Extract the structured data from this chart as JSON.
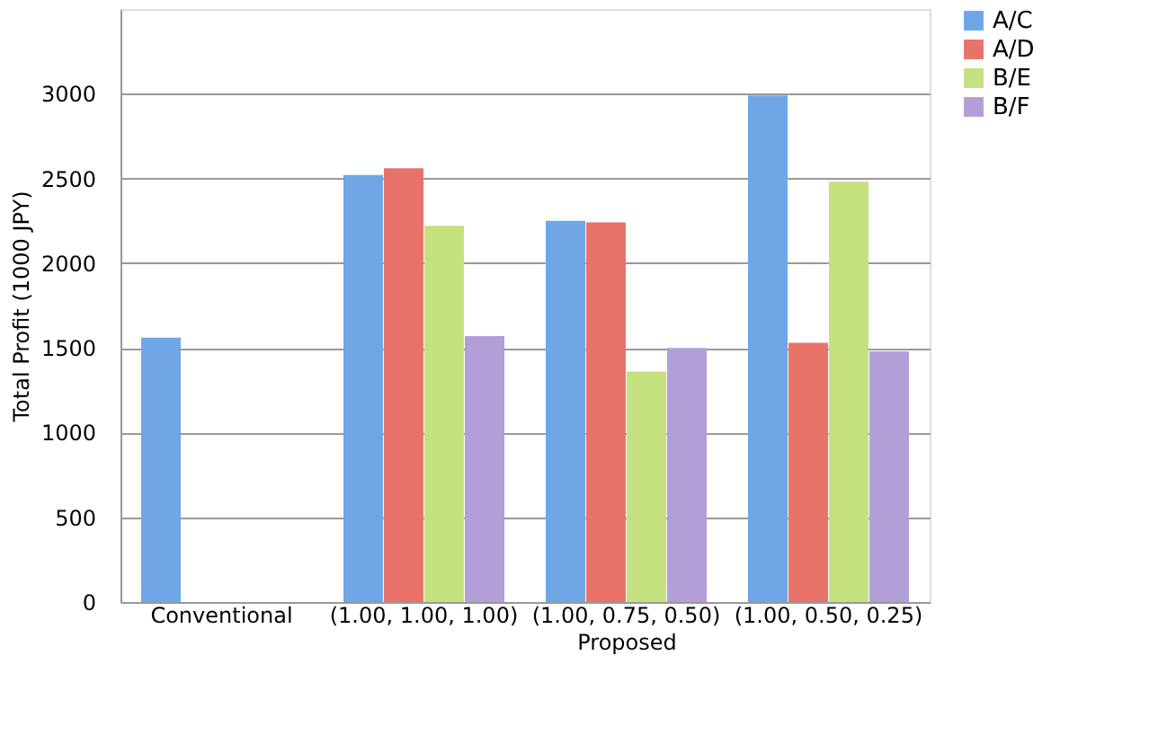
{
  "chart_data": {
    "type": "bar",
    "ylabel": "Total Profit (1000 JPY)",
    "xlabel": "Proposed",
    "categories": [
      "Conventional",
      "(1.00, 1.00, 1.00)",
      "(1.00, 0.75, 0.50)",
      "(1.00, 0.50, 0.25)"
    ],
    "series": [
      {
        "name": "A/C",
        "color": "#6fa6e6",
        "values": [
          1560,
          2520,
          2250,
          2990
        ]
      },
      {
        "name": "A/D",
        "color": "#e8736a",
        "values": [
          null,
          2560,
          2240,
          1530
        ]
      },
      {
        "name": "B/E",
        "color": "#c5e07f",
        "values": [
          null,
          2220,
          1360,
          2480
        ]
      },
      {
        "name": "B/F",
        "color": "#b39fd8",
        "values": [
          null,
          1570,
          1500,
          1480
        ]
      }
    ],
    "ylim": [
      0,
      3500
    ],
    "yticks": [
      0,
      500,
      1000,
      1500,
      2000,
      2500,
      3000
    ],
    "grid": "y",
    "legend": "right"
  }
}
